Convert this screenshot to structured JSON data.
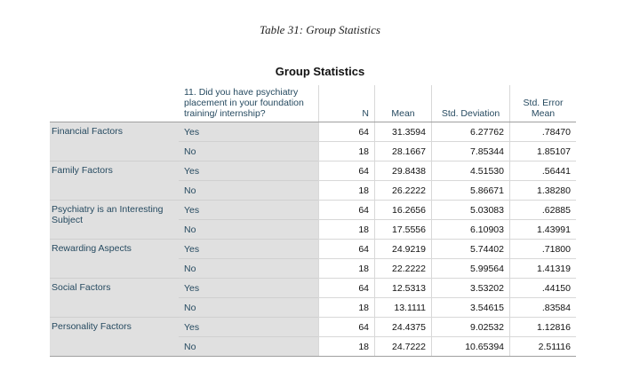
{
  "caption": "Table 31: Group Statistics",
  "table_title": "Group Statistics",
  "headers": {
    "question": "11. Did you have psychiatry placement in your foundation training/ internship?",
    "n": "N",
    "mean": "Mean",
    "sd": "Std. Deviation",
    "se": "Std. Error Mean"
  },
  "groups": [
    {
      "name": "Financial Factors",
      "rows": [
        {
          "level": "Yes",
          "n": "64",
          "mean": "31.3594",
          "sd": "6.27762",
          "se": ".78470"
        },
        {
          "level": "No",
          "n": "18",
          "mean": "28.1667",
          "sd": "7.85344",
          "se": "1.85107"
        }
      ]
    },
    {
      "name": "Family Factors",
      "rows": [
        {
          "level": "Yes",
          "n": "64",
          "mean": "29.8438",
          "sd": "4.51530",
          "se": ".56441"
        },
        {
          "level": "No",
          "n": "18",
          "mean": "26.2222",
          "sd": "5.86671",
          "se": "1.38280"
        }
      ]
    },
    {
      "name": "Psychiatry is an Interesting Subject",
      "rows": [
        {
          "level": "Yes",
          "n": "64",
          "mean": "16.2656",
          "sd": "5.03083",
          "se": ".62885"
        },
        {
          "level": "No",
          "n": "18",
          "mean": "17.5556",
          "sd": "6.10903",
          "se": "1.43991"
        }
      ]
    },
    {
      "name": "Rewarding Aspects",
      "rows": [
        {
          "level": "Yes",
          "n": "64",
          "mean": "24.9219",
          "sd": "5.74402",
          "se": ".71800"
        },
        {
          "level": "No",
          "n": "18",
          "mean": "22.2222",
          "sd": "5.99564",
          "se": "1.41319"
        }
      ]
    },
    {
      "name": "Social Factors",
      "rows": [
        {
          "level": "Yes",
          "n": "64",
          "mean": "12.5313",
          "sd": "3.53202",
          "se": ".44150"
        },
        {
          "level": "No",
          "n": "18",
          "mean": "13.1111",
          "sd": "3.54615",
          "se": ".83584"
        }
      ]
    },
    {
      "name": "Personality Factors",
      "rows": [
        {
          "level": "Yes",
          "n": "64",
          "mean": "24.4375",
          "sd": "9.02532",
          "se": "1.12816"
        },
        {
          "level": "No",
          "n": "18",
          "mean": "24.7222",
          "sd": "10.65394",
          "se": "2.51116"
        }
      ]
    }
  ]
}
